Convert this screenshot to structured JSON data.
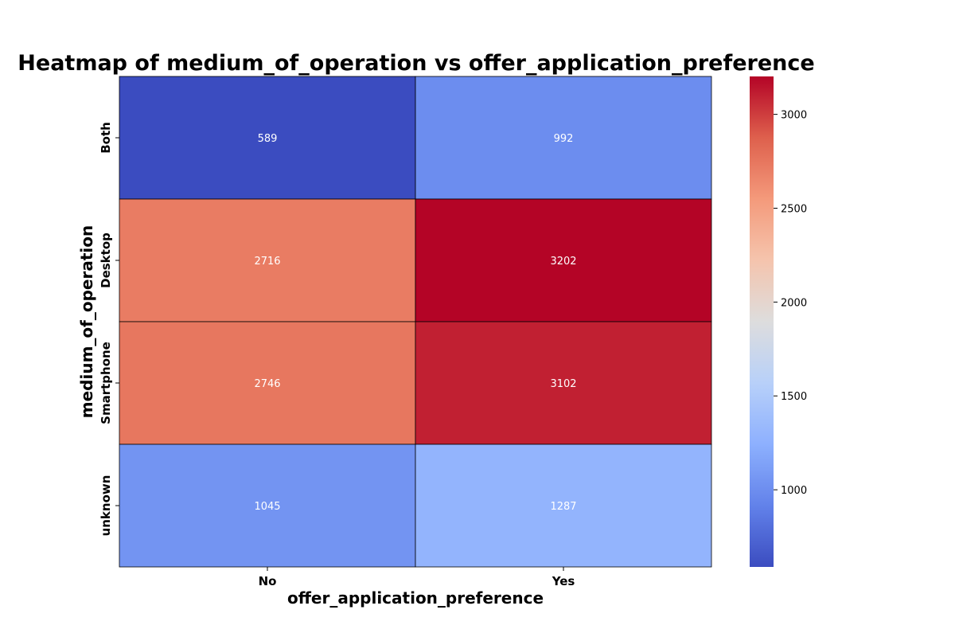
{
  "chart_data": {
    "type": "heatmap",
    "title": "Heatmap of medium_of_operation vs offer_application_preference",
    "xlabel": "offer_application_preference",
    "ylabel": "medium_of_operation",
    "x_categories": [
      "No",
      "Yes"
    ],
    "y_categories": [
      "Both",
      "Desktop",
      "Smartphone",
      "unknown"
    ],
    "values": [
      [
        589,
        992
      ],
      [
        2716,
        3202
      ],
      [
        2746,
        3102
      ],
      [
        1045,
        1287
      ]
    ],
    "colormap": "coolwarm",
    "colorbar": {
      "range": [
        589,
        3202
      ],
      "ticks": [
        1000,
        1500,
        2000,
        2500,
        3000
      ]
    },
    "grid": true
  }
}
